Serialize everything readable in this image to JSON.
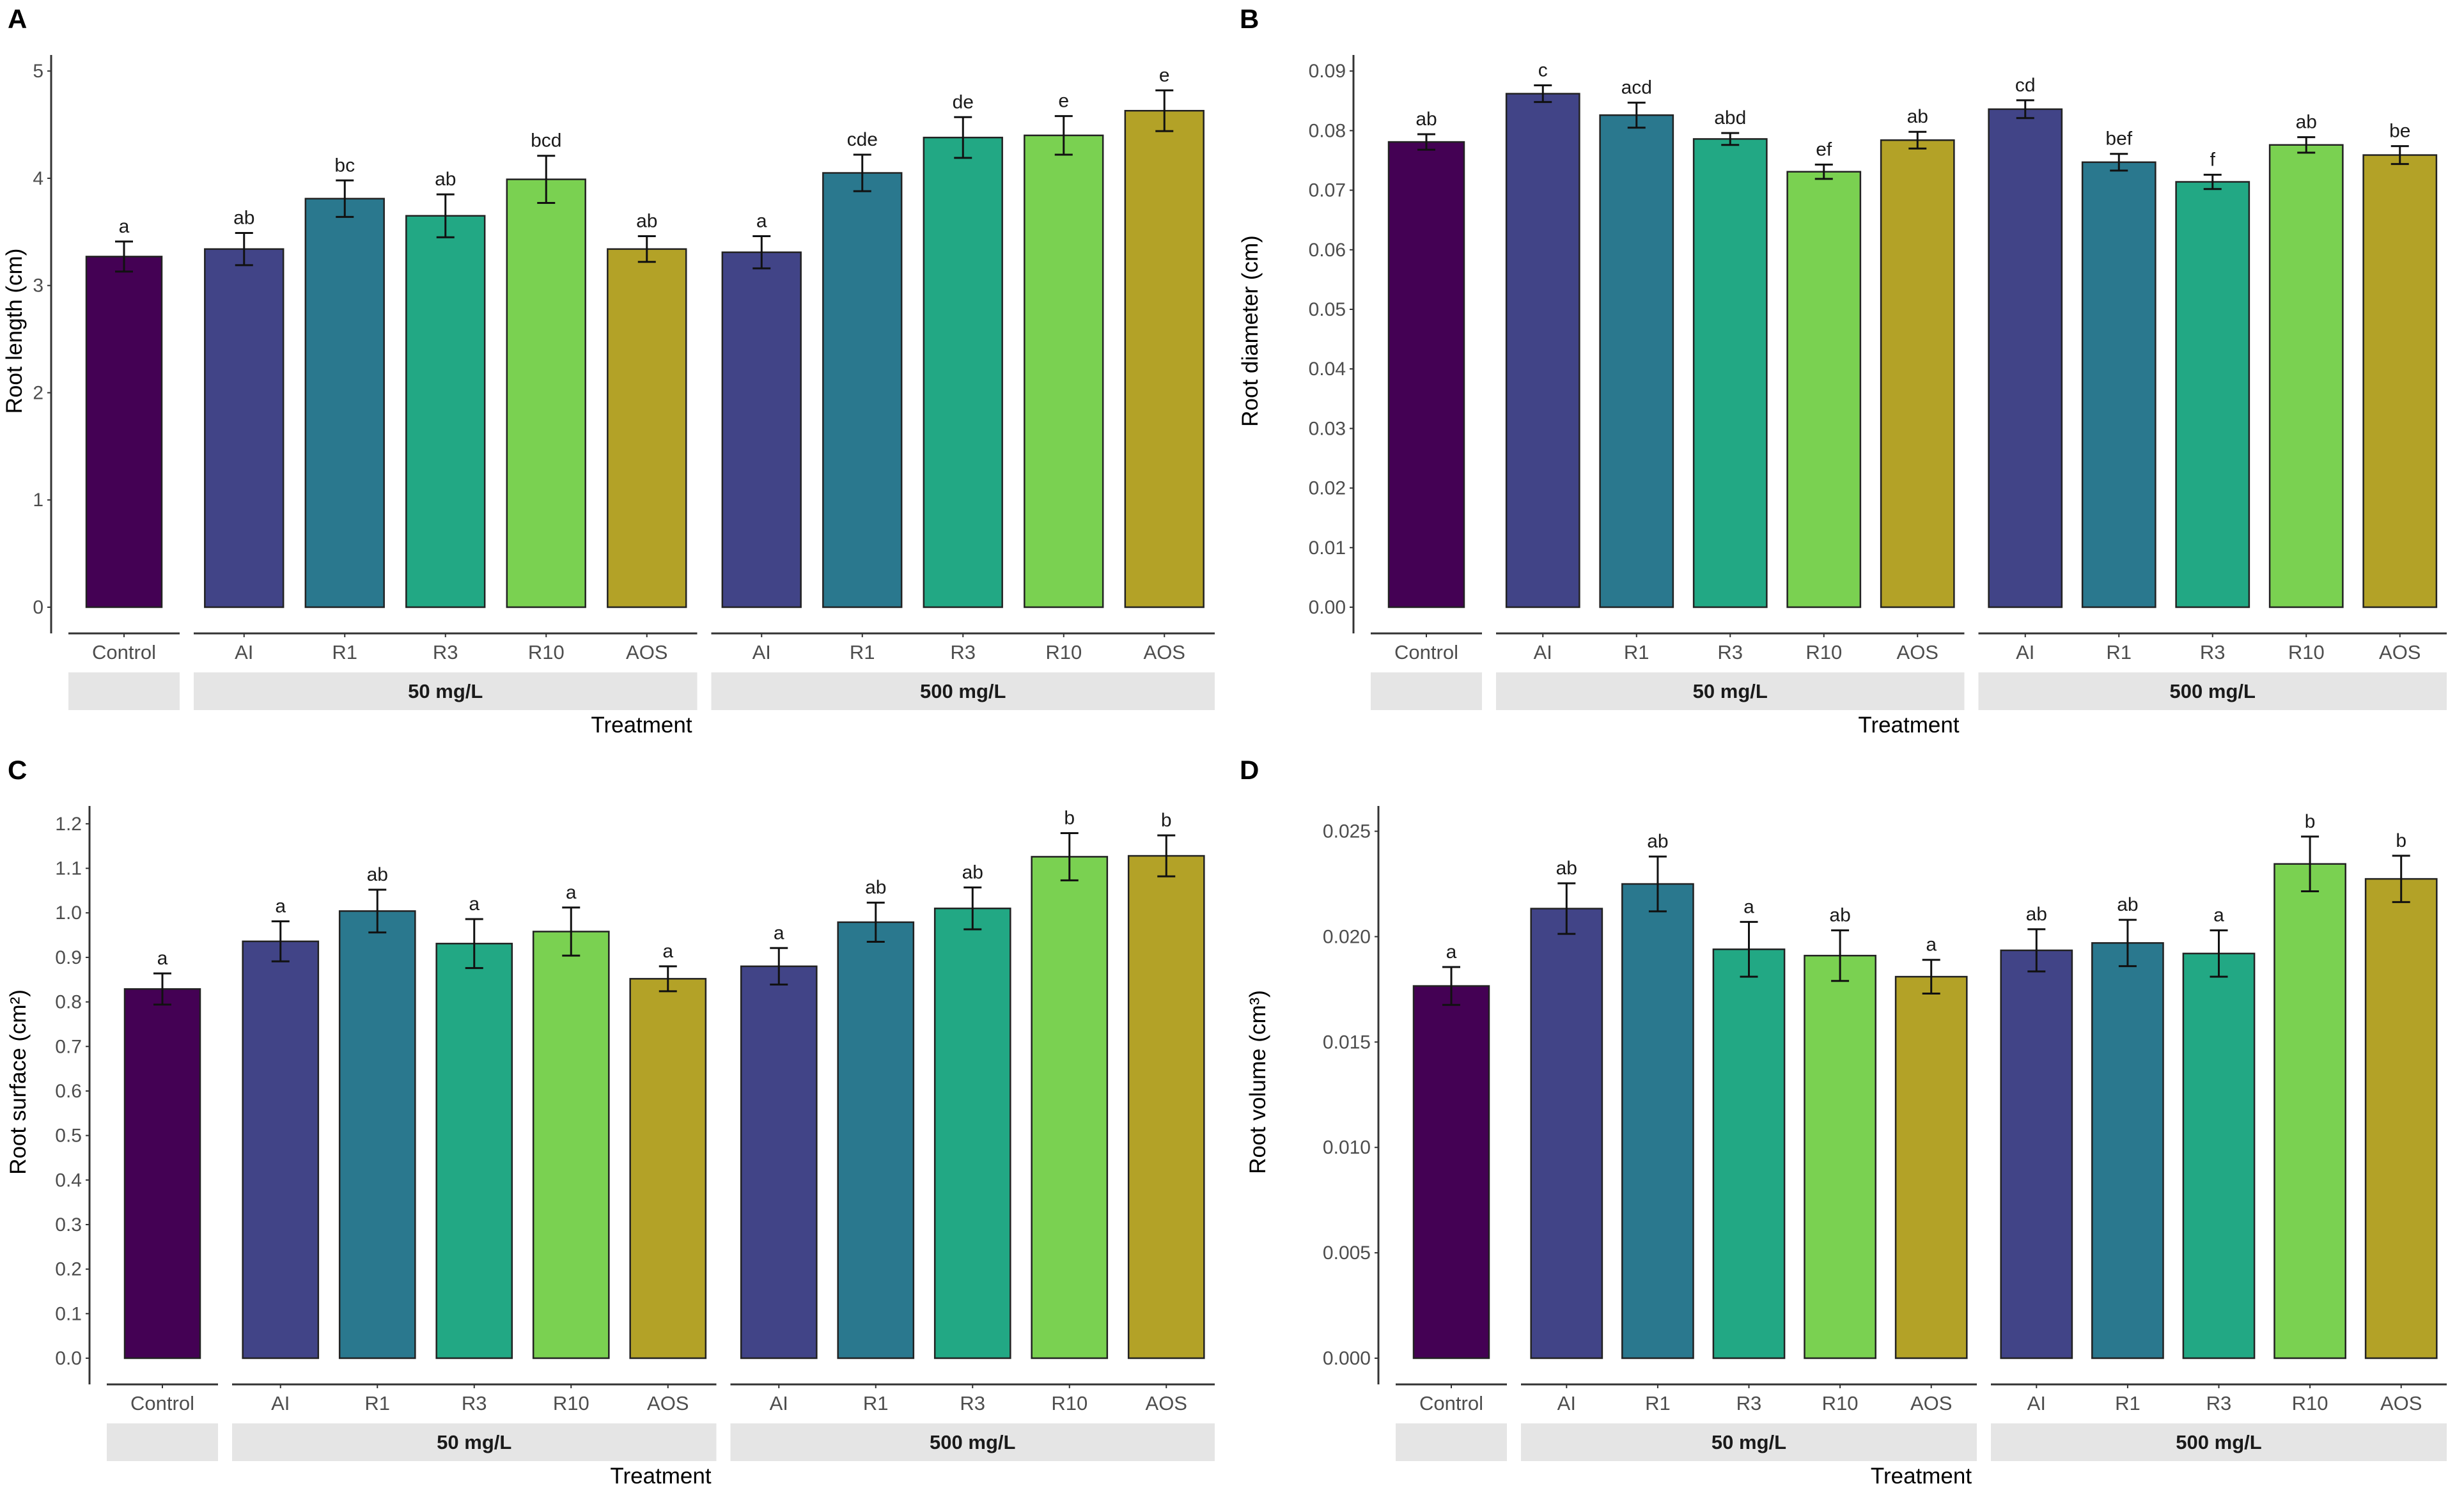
{
  "colors": {
    "Control": "#440154",
    "AI": "#414487",
    "R1": "#2A788E",
    "R3": "#22A884",
    "R10": "#7AD151",
    "AOS": "#B3A227",
    "strip": "#e5e5e5"
  },
  "chart_data": [
    {
      "panel": "A",
      "type": "bar",
      "title": "",
      "ylabel": "Root length (cm)",
      "xlabel": "Treatment",
      "ylim": [
        0,
        5.15
      ],
      "yticks": [
        "0",
        "1",
        "2",
        "3",
        "4",
        "5"
      ],
      "ytick_values": [
        0,
        1,
        2,
        3,
        4,
        5
      ],
      "facets": [
        {
          "label": "",
          "categories": [
            "Control"
          ]
        },
        {
          "label": "50 mg/L",
          "categories": [
            "AI",
            "R1",
            "R3",
            "R10",
            "AOS"
          ]
        },
        {
          "label": "500 mg/L",
          "categories": [
            "AI",
            "R1",
            "R3",
            "R10",
            "AOS"
          ]
        }
      ],
      "values": [
        3.27,
        3.34,
        3.81,
        3.65,
        3.99,
        3.34,
        3.31,
        4.05,
        4.38,
        4.4,
        4.63
      ],
      "errors": [
        0.14,
        0.15,
        0.17,
        0.2,
        0.22,
        0.12,
        0.15,
        0.17,
        0.19,
        0.18,
        0.19
      ],
      "letters": [
        "a",
        "ab",
        "bc",
        "ab",
        "bcd",
        "ab",
        "a",
        "cde",
        "de",
        "e",
        "e"
      ]
    },
    {
      "panel": "B",
      "type": "bar",
      "title": "",
      "ylabel": "Root diameter (cm)",
      "xlabel": "Treatment",
      "ylim": [
        0,
        0.0927
      ],
      "yticks": [
        "0.00",
        "0.01",
        "0.02",
        "0.03",
        "0.04",
        "0.05",
        "0.06",
        "0.07",
        "0.08",
        "0.09"
      ],
      "ytick_values": [
        0,
        0.01,
        0.02,
        0.03,
        0.04,
        0.05,
        0.06,
        0.07,
        0.08,
        0.09
      ],
      "facets": [
        {
          "label": "",
          "categories": [
            "Control"
          ]
        },
        {
          "label": "50 mg/L",
          "categories": [
            "AI",
            "R1",
            "R3",
            "R10",
            "AOS"
          ]
        },
        {
          "label": "500 mg/L",
          "categories": [
            "AI",
            "R1",
            "R3",
            "R10",
            "AOS"
          ]
        }
      ],
      "values": [
        0.0781,
        0.0862,
        0.0826,
        0.0786,
        0.0731,
        0.0784,
        0.0836,
        0.0747,
        0.0714,
        0.0776,
        0.0759
      ],
      "errors": [
        0.0013,
        0.0014,
        0.0021,
        0.001,
        0.0012,
        0.0014,
        0.0015,
        0.0014,
        0.0012,
        0.0013,
        0.0015
      ],
      "letters": [
        "ab",
        "c",
        "acd",
        "abd",
        "ef",
        "ab",
        "cd",
        "bef",
        "f",
        "ab",
        "be"
      ]
    },
    {
      "panel": "C",
      "type": "bar",
      "title": "",
      "ylabel": "Root surface (cm²)",
      "xlabel": "Treatment",
      "ylim": [
        0,
        1.24
      ],
      "yticks": [
        "0.0",
        "0.1",
        "0.2",
        "0.3",
        "0.4",
        "0.5",
        "0.6",
        "0.7",
        "0.8",
        "0.9",
        "1.0",
        "1.1",
        "1.2"
      ],
      "ytick_values": [
        0,
        0.1,
        0.2,
        0.3,
        0.4,
        0.5,
        0.6,
        0.7,
        0.8,
        0.9,
        1.0,
        1.1,
        1.2
      ],
      "facets": [
        {
          "label": "",
          "categories": [
            "Control"
          ]
        },
        {
          "label": "50 mg/L",
          "categories": [
            "AI",
            "R1",
            "R3",
            "R10",
            "AOS"
          ]
        },
        {
          "label": "500 mg/L",
          "categories": [
            "AI",
            "R1",
            "R3",
            "R10",
            "AOS"
          ]
        }
      ],
      "values": [
        0.829,
        0.936,
        1.004,
        0.931,
        0.958,
        0.852,
        0.88,
        0.979,
        1.01,
        1.126,
        1.128
      ],
      "errors": [
        0.035,
        0.045,
        0.048,
        0.055,
        0.054,
        0.028,
        0.041,
        0.044,
        0.047,
        0.053,
        0.046
      ],
      "letters": [
        "a",
        "a",
        "ab",
        "a",
        "a",
        "a",
        "a",
        "ab",
        "ab",
        "b",
        "b"
      ]
    },
    {
      "panel": "D",
      "type": "bar",
      "title": "",
      "ylabel": "Root volume (cm³)",
      "xlabel": "Treatment",
      "ylim": [
        0,
        0.0262
      ],
      "yticks": [
        "0.000",
        "0.005",
        "0.010",
        "0.015",
        "0.020",
        "0.025"
      ],
      "ytick_values": [
        0,
        0.005,
        0.01,
        0.015,
        0.02,
        0.025
      ],
      "facets": [
        {
          "label": "",
          "categories": [
            "Control"
          ]
        },
        {
          "label": "50 mg/L",
          "categories": [
            "AI",
            "R1",
            "R3",
            "R10",
            "AOS"
          ]
        },
        {
          "label": "500 mg/L",
          "categories": [
            "AI",
            "R1",
            "R3",
            "R10",
            "AOS"
          ]
        }
      ],
      "values": [
        0.01766,
        0.02133,
        0.0225,
        0.0194,
        0.0191,
        0.0181,
        0.01935,
        0.0197,
        0.0192,
        0.02345,
        0.02274
      ],
      "errors": [
        0.0009,
        0.0012,
        0.0013,
        0.0013,
        0.0012,
        0.0008,
        0.001,
        0.0011,
        0.0011,
        0.0013,
        0.0011
      ],
      "letters": [
        "a",
        "ab",
        "ab",
        "a",
        "ab",
        "a",
        "ab",
        "ab",
        "a",
        "b",
        "b"
      ]
    }
  ]
}
